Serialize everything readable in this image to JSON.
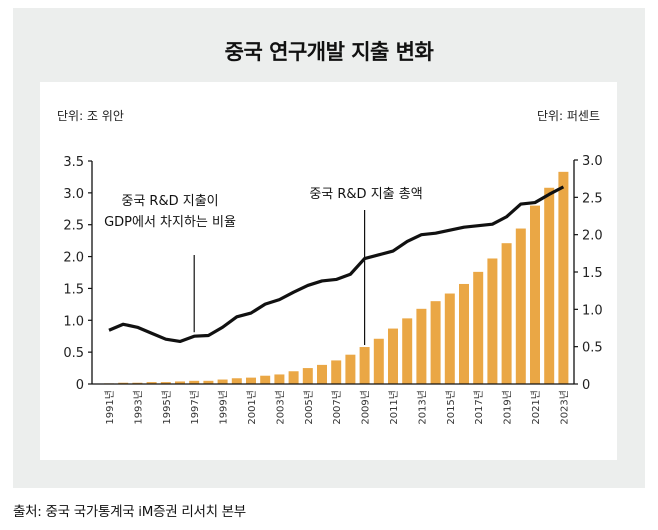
{
  "title": "중국 연구개발 지출 변화",
  "unit_left": "단위: 조 위안",
  "unit_right": "단위: 퍼센트",
  "source": "출처: 중국 국가통계국 iM증권 리서치 본부",
  "colors": {
    "bar": "#eaa745",
    "line": "#111111",
    "outer_bg": "#eceeed",
    "panel_bg": "#ffffff"
  },
  "chart_data": {
    "type": "bar",
    "title": "중국 연구개발 지출 변화",
    "xlabel": "",
    "ylabel": "단위: 조 위안",
    "y2label": "단위: 퍼센트",
    "ylim": [
      0,
      3.5
    ],
    "y2lim": [
      0,
      3.0
    ],
    "yticks": [
      "0",
      "0.5",
      "1.0",
      "1.5",
      "2.0",
      "2.5",
      "3.0",
      "3.5"
    ],
    "y2ticks": [
      "0",
      "0.5",
      "1.0",
      "1.5",
      "2.0",
      "2.5",
      "3.0"
    ],
    "grid": false,
    "categories": [
      "1991년",
      "1992년",
      "1993년",
      "1994년",
      "1995년",
      "1996년",
      "1997년",
      "1998년",
      "1999년",
      "2000년",
      "2001년",
      "2002년",
      "2003년",
      "2004년",
      "2005년",
      "2006년",
      "2007년",
      "2008년",
      "2009년",
      "2010년",
      "2011년",
      "2012년",
      "2013년",
      "2014년",
      "2015년",
      "2016년",
      "2017년",
      "2018년",
      "2019년",
      "2020년",
      "2021년",
      "2022년",
      "2023년"
    ],
    "x_tick_labels": [
      "1991년",
      "1993년",
      "1995년",
      "1997년",
      "1999년",
      "2001년",
      "2003년",
      "2005년",
      "2007년",
      "2009년",
      "2011년",
      "2013년",
      "2015년",
      "2017년",
      "2019년",
      "2021년",
      "2023년"
    ],
    "series": [
      {
        "name": "중국 R&D 지출 총액",
        "type": "bar",
        "axis": "left",
        "values": [
          0.01,
          0.02,
          0.02,
          0.03,
          0.03,
          0.04,
          0.05,
          0.05,
          0.07,
          0.09,
          0.1,
          0.13,
          0.15,
          0.2,
          0.25,
          0.3,
          0.37,
          0.46,
          0.58,
          0.71,
          0.87,
          1.03,
          1.18,
          1.3,
          1.42,
          1.57,
          1.76,
          1.97,
          2.21,
          2.44,
          2.8,
          3.08,
          3.33
        ]
      },
      {
        "name": "중국 R&D 지출이 GDP에서 차지하는 비율",
        "type": "line",
        "axis": "right",
        "values": [
          0.72,
          0.8,
          0.76,
          0.68,
          0.6,
          0.57,
          0.64,
          0.65,
          0.76,
          0.9,
          0.95,
          1.07,
          1.13,
          1.23,
          1.32,
          1.38,
          1.4,
          1.47,
          1.68,
          1.73,
          1.78,
          1.91,
          2.0,
          2.02,
          2.06,
          2.1,
          2.12,
          2.14,
          2.24,
          2.41,
          2.43,
          2.54,
          2.64
        ]
      }
    ],
    "annotations": [
      {
        "text_lines": [
          "중국 R&D 지출이",
          "GDP에서 차지하는 비율"
        ],
        "target_series": 1,
        "target_category": "1997년"
      },
      {
        "text_lines": [
          "중국 R&D 지출 총액"
        ],
        "target_series": 0,
        "target_category": "2009년"
      }
    ]
  }
}
